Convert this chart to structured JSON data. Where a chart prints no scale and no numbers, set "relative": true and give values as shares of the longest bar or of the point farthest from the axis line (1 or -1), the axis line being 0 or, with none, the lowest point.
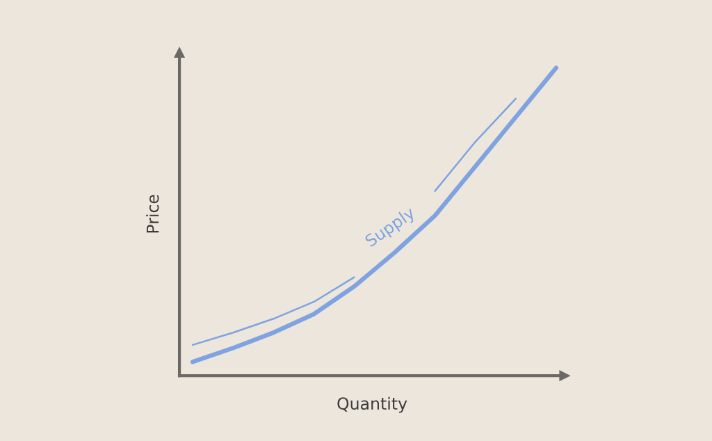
{
  "chart_data": {
    "type": "line",
    "relative": true,
    "xlabel": "Quantity",
    "ylabel": "Price",
    "categories": [
      null,
      null,
      null,
      null,
      null,
      null,
      null,
      null,
      null,
      null
    ],
    "series": [
      {
        "name": "Supply",
        "color": "#7fa3e0",
        "values": [
          0.045,
          0.09,
          0.14,
          0.2,
          0.29,
          0.4,
          0.52,
          0.68,
          0.84,
          1.0
        ]
      },
      {
        "color": "#7fa3e0",
        "values": [
          0.1,
          0.14,
          0.185,
          0.24,
          0.32,
          null,
          0.6,
          0.76,
          0.9,
          null
        ]
      }
    ],
    "legend": false,
    "marker": "none",
    "line_style": "solid"
  }
}
